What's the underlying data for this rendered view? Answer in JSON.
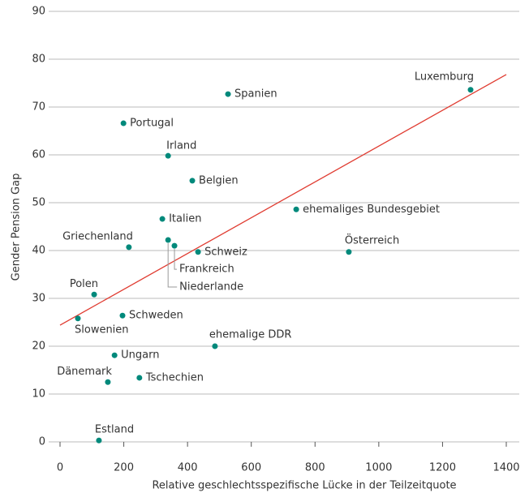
{
  "chart_data": {
    "type": "scatter",
    "x_label": "Relative geschlechtsspezifische Lücke in der Teilzeitquote",
    "y_label": "Gender Pension Gap",
    "points": [
      {
        "label": "Luxemburg",
        "x": 1288,
        "y": 73.6
      },
      {
        "label": "Spanien",
        "x": 527,
        "y": 72.7
      },
      {
        "label": "Portugal",
        "x": 199,
        "y": 66.6
      },
      {
        "label": "Irland",
        "x": 339,
        "y": 59.8
      },
      {
        "label": "Belgien",
        "x": 415,
        "y": 54.6
      },
      {
        "label": "ehemaliges Bundesgebiet",
        "x": 741,
        "y": 48.6
      },
      {
        "label": "Italien",
        "x": 321,
        "y": 46.6
      },
      {
        "label": "Griechenland",
        "x": 216,
        "y": 40.7
      },
      {
        "label": "Niederlande",
        "x": 339,
        "y": 42.2
      },
      {
        "label": "Frankreich",
        "x": 359,
        "y": 41.0
      },
      {
        "label": "Schweiz",
        "x": 433,
        "y": 39.7
      },
      {
        "label": "Österreich",
        "x": 906,
        "y": 39.7
      },
      {
        "label": "Polen",
        "x": 107,
        "y": 30.8
      },
      {
        "label": "Slowenien",
        "x": 56,
        "y": 25.8
      },
      {
        "label": "Schweden",
        "x": 196,
        "y": 26.4
      },
      {
        "label": "ehemalige DDR",
        "x": 486,
        "y": 20.0
      },
      {
        "label": "Ungarn",
        "x": 171,
        "y": 18.1
      },
      {
        "label": "Dänemark",
        "x": 150,
        "y": 12.5
      },
      {
        "label": "Tschechien",
        "x": 249,
        "y": 13.4
      },
      {
        "label": "Estland",
        "x": 122,
        "y": 0.3
      }
    ],
    "color": "#00897b",
    "trend": {
      "x": [
        0,
        1400
      ],
      "y": [
        24.4,
        76.8
      ],
      "color": "#e03c31"
    },
    "xlim": [
      0,
      1400
    ],
    "xticks": [
      0,
      200,
      400,
      600,
      800,
      1000,
      1200,
      1400
    ],
    "ylim": [
      0,
      90
    ],
    "yticks": [
      0,
      10,
      20,
      30,
      40,
      50,
      60,
      70,
      80,
      90
    ],
    "grid": true
  }
}
